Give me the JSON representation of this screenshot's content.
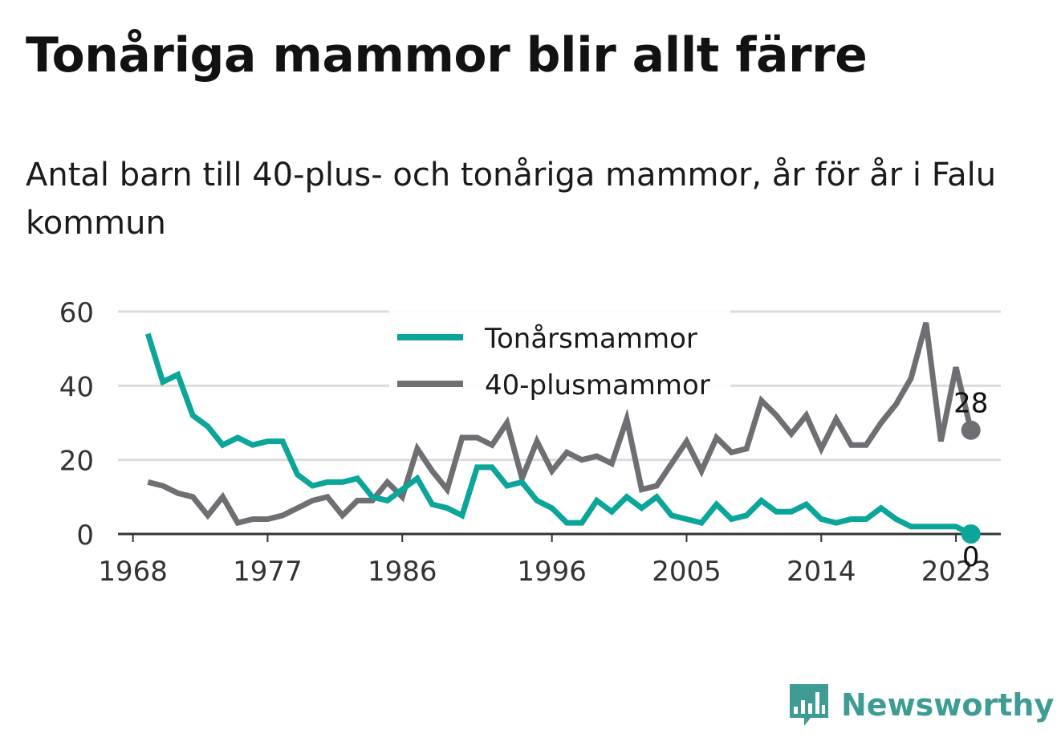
{
  "title": "Tonåriga mammor blir allt färre",
  "subtitle": "Antal barn till 40-plus- och tonåriga mammor, år för år i Falu kommun",
  "brand": {
    "name": "Newsworthy",
    "icon": "newsworthy-chat-bars-icon"
  },
  "colors": {
    "teal": "#0ca59a",
    "gray": "#6e6e73",
    "grid": "#dcdcdc",
    "axis": "#333333",
    "brand": "#3e9c95"
  },
  "chart_data": {
    "type": "line",
    "ylim": [
      0,
      60
    ],
    "yticks": [
      0,
      20,
      40,
      60
    ],
    "xlim": [
      1967,
      2026
    ],
    "xticks": [
      1968,
      1977,
      1986,
      1996,
      2005,
      2014,
      2023
    ],
    "grid": true,
    "legend": "top-center",
    "x": [
      1969,
      1970,
      1971,
      1972,
      1973,
      1974,
      1975,
      1976,
      1977,
      1978,
      1979,
      1980,
      1981,
      1982,
      1983,
      1984,
      1985,
      1986,
      1987,
      1988,
      1989,
      1990,
      1991,
      1992,
      1993,
      1994,
      1995,
      1996,
      1997,
      1998,
      1999,
      2000,
      2001,
      2002,
      2003,
      2004,
      2005,
      2006,
      2007,
      2008,
      2009,
      2010,
      2011,
      2012,
      2013,
      2014,
      2015,
      2016,
      2017,
      2018,
      2019,
      2020,
      2021,
      2022,
      2023,
      2024
    ],
    "series": [
      {
        "name": "Tonårsmammor",
        "color": "#0ca59a",
        "values": [
          54,
          41,
          43,
          32,
          29,
          24,
          26,
          24,
          25,
          25,
          16,
          13,
          14,
          14,
          15,
          10,
          9,
          12,
          15,
          8,
          7,
          5,
          18,
          18,
          13,
          14,
          9,
          7,
          3,
          3,
          9,
          6,
          10,
          7,
          10,
          5,
          4,
          3,
          8,
          4,
          5,
          9,
          6,
          6,
          8,
          4,
          3,
          4,
          4,
          7,
          4,
          2,
          2,
          2,
          2,
          0
        ],
        "end_label": "0"
      },
      {
        "name": "40-plusmammor",
        "color": "#6e6e73",
        "values": [
          14,
          13,
          11,
          10,
          5,
          10,
          3,
          4,
          4,
          5,
          7,
          9,
          10,
          5,
          9,
          9,
          14,
          10,
          23,
          17,
          12,
          26,
          26,
          24,
          30,
          15,
          25,
          17,
          22,
          20,
          21,
          19,
          31,
          12,
          13,
          19,
          25,
          17,
          26,
          22,
          23,
          36,
          32,
          27,
          32,
          23,
          31,
          24,
          24,
          30,
          35,
          42,
          57,
          25,
          45,
          28
        ],
        "end_label": "28"
      }
    ]
  }
}
